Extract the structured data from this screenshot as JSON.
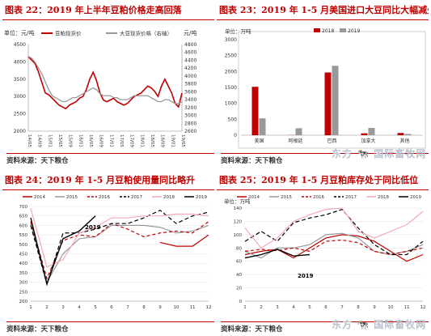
{
  "colors": {
    "red": "#c00000",
    "gray": "#999999",
    "black": "#000000",
    "pink": "#f4a9b5"
  },
  "source_text": "资料来源：天下粮仓",
  "watermark_text": "东方 🐄 国际畜牧网",
  "chart_data": [
    {
      "type": "line",
      "title": "图表 22：2019 年上半年豆粕价格走高回落",
      "ylabel_left": "单位：元/吨",
      "ylabel_right": "元/吨",
      "ylim_left": [
        2000,
        4500
      ],
      "ylim_right": [
        2600,
        4800
      ],
      "yticks_left": [
        2000,
        2500,
        3000,
        3500,
        4000,
        4500
      ],
      "yticks_right": [
        2600,
        2800,
        3000,
        3200,
        3400,
        3600,
        3800,
        4000,
        4200,
        4400,
        4600,
        4800
      ],
      "x_ticks": [
        "14/05",
        "14/09",
        "15/01",
        "15/05",
        "15/09",
        "16/01",
        "16/05",
        "16/09",
        "17/01",
        "17/05",
        "17/09",
        "18/01",
        "18/05",
        "18/09",
        "19/01",
        "19/05"
      ],
      "legend": [
        "豆粕现货价",
        "大豆现货价格（右轴）"
      ],
      "series": [
        {
          "name": "豆粕现货价",
          "axis": "left",
          "color": "#c00000",
          "values": [
            4150,
            4050,
            3950,
            3700,
            3400,
            3100,
            3050,
            2950,
            2850,
            2750,
            2700,
            2650,
            2750,
            2800,
            2850,
            2950,
            3000,
            3200,
            3500,
            3700,
            3450,
            3100,
            2900,
            2850,
            2900,
            2950,
            2850,
            2800,
            2750,
            2800,
            2900,
            3000,
            3050,
            3100,
            3200,
            3300,
            3250,
            3150,
            3000,
            3300,
            3500,
            3300,
            3100,
            2800,
            2700,
            3100
          ]
        },
        {
          "name": "大豆现货价格（右轴）",
          "axis": "right",
          "color": "#999999",
          "values": [
            4500,
            4450,
            4350,
            4200,
            4050,
            3850,
            3650,
            3500,
            3450,
            3400,
            3350,
            3350,
            3400,
            3450,
            3450,
            3500,
            3550,
            3600,
            3650,
            3700,
            3650,
            3550,
            3500,
            3500,
            3500,
            3450,
            3450,
            3400,
            3400,
            3400,
            3450,
            3500,
            3500,
            3500,
            3500,
            3500,
            3450,
            3400,
            3350,
            3350,
            3400,
            3400,
            3350,
            3300,
            3300,
            3350
          ]
        }
      ]
    },
    {
      "type": "bar",
      "title": "图表 23：2019 年 1-5 月美国进口大豆同比大幅减少",
      "ylabel": "单位：万吨",
      "ylim": [
        0,
        3000
      ],
      "yticks": [
        0,
        500,
        1000,
        1500,
        2000,
        2500,
        3000
      ],
      "categories": [
        "美国",
        "阿根廷",
        "巴西",
        "加拿大",
        "其他"
      ],
      "series": [
        {
          "name": "2018",
          "color": "#c00000",
          "values": [
            1520,
            5,
            1970,
            60,
            70
          ]
        },
        {
          "name": "2019",
          "color": "#999999",
          "values": [
            530,
            220,
            2180,
            230,
            40
          ]
        }
      ]
    },
    {
      "type": "line",
      "title": "图表 24：2019 年 1-5 月豆粕使用量同比略升",
      "ylim": [
        200,
        700
      ],
      "yticks": [
        200,
        250,
        300,
        350,
        400,
        450,
        500,
        550,
        600,
        650,
        700
      ],
      "x": [
        1,
        2,
        3,
        4,
        5,
        6,
        7,
        8,
        9,
        10,
        11,
        12
      ],
      "annotation": "2019",
      "series": [
        {
          "name": "2014",
          "color": "#c00000",
          "dash": "",
          "values": [
            null,
            null,
            null,
            null,
            null,
            null,
            null,
            null,
            510,
            490,
            490,
            550
          ]
        },
        {
          "name": "2015",
          "color": "#999999",
          "dash": "",
          "values": [
            610,
            300,
            450,
            530,
            540,
            600,
            600,
            600,
            590,
            560,
            570,
            600
          ]
        },
        {
          "name": "2016",
          "color": "#c00000",
          "dash": "4,3",
          "values": [
            620,
            320,
            520,
            550,
            540,
            610,
            580,
            540,
            560,
            570,
            560,
            620
          ]
        },
        {
          "name": "2017",
          "color": "#000000",
          "dash": "5,3",
          "values": [
            600,
            290,
            560,
            560,
            580,
            610,
            610,
            640,
            680,
            610,
            650,
            670
          ]
        },
        {
          "name": "2018",
          "color": "#f4a9b5",
          "dash": "",
          "values": [
            690,
            380,
            420,
            560,
            590,
            640,
            640,
            650,
            650,
            660,
            660,
            650
          ]
        },
        {
          "name": "2019",
          "color": "#000000",
          "dash": "",
          "values": [
            640,
            290,
            530,
            570,
            650,
            null,
            null,
            null,
            null,
            null,
            null,
            null
          ]
        }
      ]
    },
    {
      "type": "line",
      "title": "图表 25：2019 年 1-5 月豆粕库存处于同比低位",
      "ylabel": "单位：万吨",
      "ylim": [
        0,
        140
      ],
      "yticks": [
        0,
        20,
        40,
        60,
        80,
        100,
        120,
        140
      ],
      "x": [
        1,
        2,
        3,
        4,
        5,
        6,
        7,
        8,
        9,
        10,
        11,
        12
      ],
      "annotation": "2019",
      "series": [
        {
          "name": "2014",
          "color": "#c00000",
          "dash": "",
          "values": [
            70,
            75,
            78,
            65,
            80,
            95,
            100,
            98,
            90,
            75,
            60,
            70
          ]
        },
        {
          "name": "2015",
          "color": "#999999",
          "dash": "",
          "values": [
            75,
            65,
            80,
            80,
            85,
            100,
            102,
            95,
            75,
            70,
            75,
            85
          ]
        },
        {
          "name": "2016",
          "color": "#c00000",
          "dash": "4,3",
          "values": [
            75,
            78,
            76,
            80,
            75,
            90,
            92,
            88,
            75,
            70,
            75,
            80
          ]
        },
        {
          "name": "2017",
          "color": "#000000",
          "dash": "5,3",
          "values": [
            90,
            105,
            90,
            118,
            125,
            130,
            138,
            110,
            85,
            70,
            70,
            90
          ]
        },
        {
          "name": "2018",
          "color": "#f4a9b5",
          "dash": "",
          "values": [
            110,
            80,
            95,
            120,
            130,
            138,
            140,
            105,
            95,
            105,
            115,
            135
          ]
        },
        {
          "name": "2019",
          "color": "#000000",
          "dash": "",
          "values": [
            65,
            70,
            78,
            68,
            70,
            null,
            null,
            null,
            null,
            null,
            null,
            null
          ]
        }
      ]
    }
  ]
}
